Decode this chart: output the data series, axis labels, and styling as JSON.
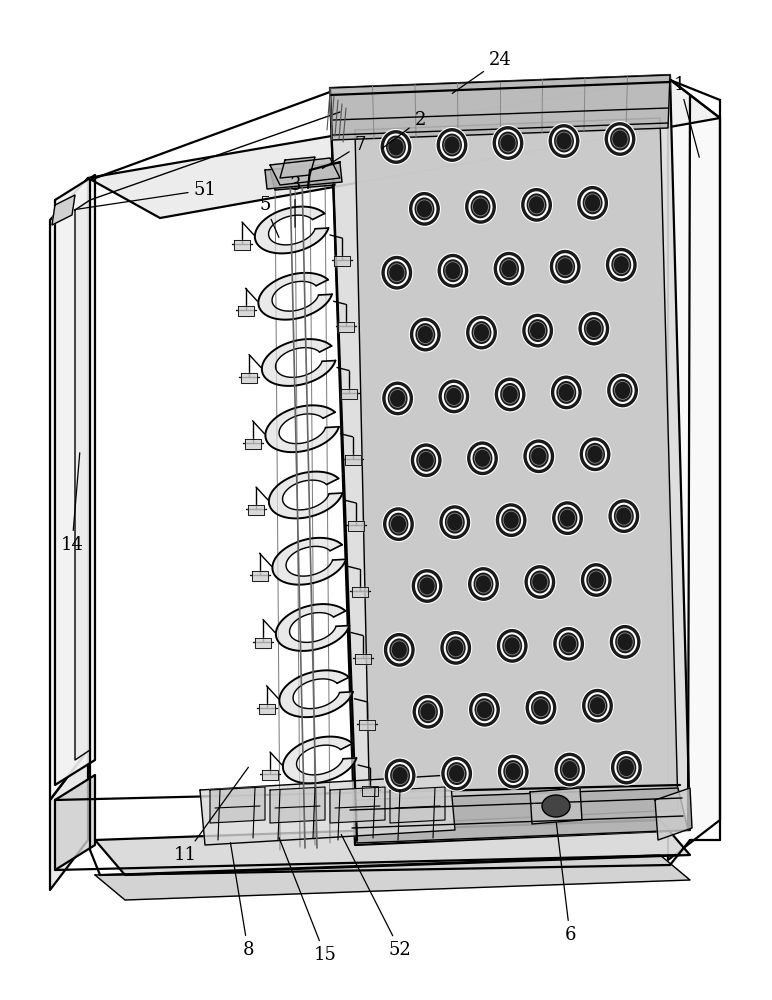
{
  "background_color": "#ffffff",
  "line_color": "#000000",
  "label_color": "#000000",
  "figure_width": 7.72,
  "figure_height": 10.0,
  "dpi": 100,
  "annotation_fontsize": 13,
  "lw_main": 1.0,
  "lw_thick": 1.6,
  "lw_thin": 0.6
}
